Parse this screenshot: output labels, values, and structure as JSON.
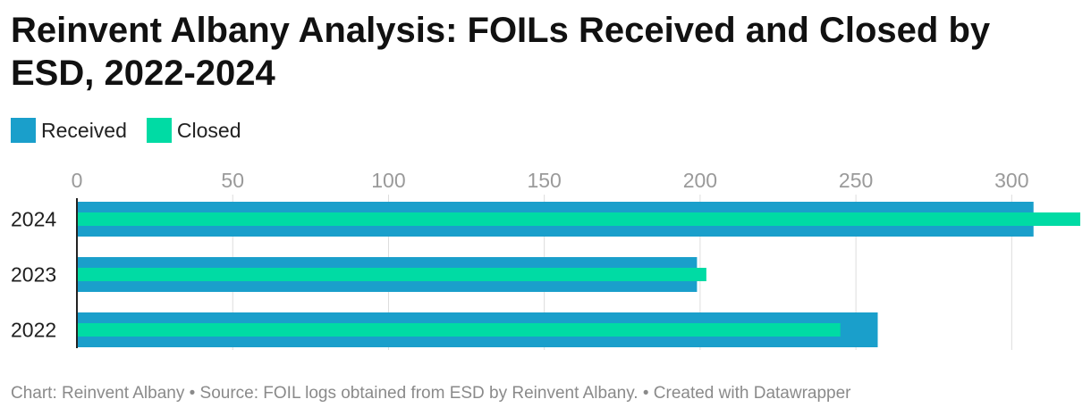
{
  "header": {
    "title": "Reinvent Albany Analysis: FOILs Received and Closed by ESD, 2022-2024"
  },
  "footer": {
    "credit": "Chart: Reinvent Albany • Source: FOIL logs obtained from ESD by Reinvent Albany. • Created with Datawrapper"
  },
  "colors": {
    "received": "#1a9fcb",
    "closed": "#00dba4",
    "grid": "#dddddd",
    "baseline": "#222222"
  },
  "chart_data": {
    "type": "bar",
    "orientation": "horizontal",
    "categories": [
      "2024",
      "2023",
      "2022"
    ],
    "series": [
      {
        "name": "Received",
        "values": [
          307,
          199,
          257
        ]
      },
      {
        "name": "Closed",
        "values": [
          322,
          202,
          245
        ]
      }
    ],
    "xticks": [
      0,
      50,
      100,
      150,
      200,
      250,
      300
    ],
    "xlim": [
      0,
      322
    ],
    "grid": true,
    "legend": "top-left"
  }
}
